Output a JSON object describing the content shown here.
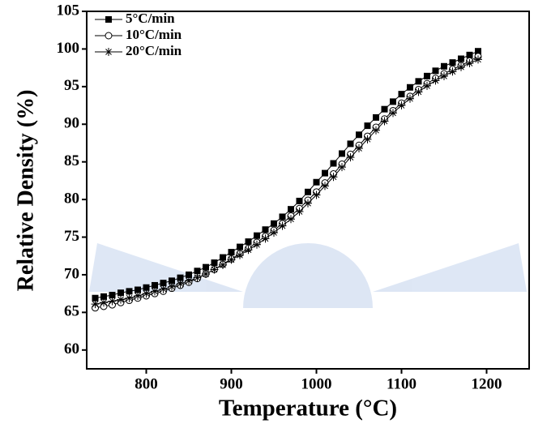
{
  "chart_data": {
    "type": "line",
    "xlabel": "Temperature (°C)",
    "ylabel": "Relative Density (%)",
    "x": [
      740,
      750,
      760,
      770,
      780,
      790,
      800,
      810,
      820,
      830,
      840,
      850,
      860,
      870,
      880,
      890,
      900,
      910,
      920,
      930,
      940,
      950,
      960,
      970,
      980,
      990,
      1000,
      1010,
      1020,
      1030,
      1040,
      1050,
      1060,
      1070,
      1080,
      1090,
      1100,
      1110,
      1120,
      1130,
      1140,
      1150,
      1160,
      1170,
      1180,
      1190
    ],
    "series": [
      {
        "name": "5°C/min",
        "color": "#000000",
        "marker": "square",
        "values": [
          66.9,
          67.1,
          67.3,
          67.6,
          67.8,
          68.0,
          68.3,
          68.6,
          68.9,
          69.2,
          69.6,
          70.0,
          70.5,
          71.0,
          71.6,
          72.3,
          73.0,
          73.7,
          74.4,
          75.2,
          76.0,
          76.8,
          77.7,
          78.7,
          79.8,
          81.0,
          82.3,
          83.5,
          84.8,
          86.1,
          87.4,
          88.6,
          89.8,
          90.9,
          92.0,
          93.0,
          94.0,
          94.9,
          95.7,
          96.4,
          97.1,
          97.7,
          98.2,
          98.7,
          99.2,
          99.7
        ]
      },
      {
        "name": "10°C/min",
        "color": "#000000",
        "marker": "circle",
        "values": [
          65.6,
          65.8,
          66.0,
          66.3,
          66.6,
          66.9,
          67.2,
          67.5,
          67.8,
          68.2,
          68.6,
          69.0,
          69.5,
          70.1,
          70.7,
          71.4,
          72.1,
          72.8,
          73.5,
          74.3,
          75.1,
          75.9,
          76.8,
          77.8,
          78.8,
          79.9,
          81.0,
          82.2,
          83.4,
          84.7,
          86.0,
          87.2,
          88.4,
          89.6,
          90.7,
          91.8,
          92.8,
          93.7,
          94.6,
          95.4,
          96.1,
          96.7,
          97.3,
          97.8,
          98.4,
          99.0
        ]
      },
      {
        "name": "20°C/min",
        "color": "#000000",
        "marker": "star",
        "values": [
          66.1,
          66.3,
          66.5,
          66.7,
          66.9,
          67.2,
          67.5,
          67.8,
          68.1,
          68.4,
          68.8,
          69.2,
          69.6,
          70.1,
          70.7,
          71.3,
          72.0,
          72.6,
          73.3,
          74.0,
          74.8,
          75.6,
          76.5,
          77.4,
          78.4,
          79.5,
          80.6,
          81.8,
          83.0,
          84.3,
          85.6,
          86.8,
          88.0,
          89.2,
          90.4,
          91.5,
          92.5,
          93.4,
          94.3,
          95.1,
          95.8,
          96.4,
          97.0,
          97.6,
          98.1,
          98.6
        ]
      }
    ],
    "xlim": [
      730,
      1250
    ],
    "xticks": [
      800,
      900,
      1000,
      1100,
      1200
    ],
    "ylim": [
      57.5,
      105
    ],
    "yticks": [
      60,
      65,
      70,
      75,
      80,
      85,
      90,
      95,
      100,
      105
    ],
    "legend": "upper-left"
  }
}
